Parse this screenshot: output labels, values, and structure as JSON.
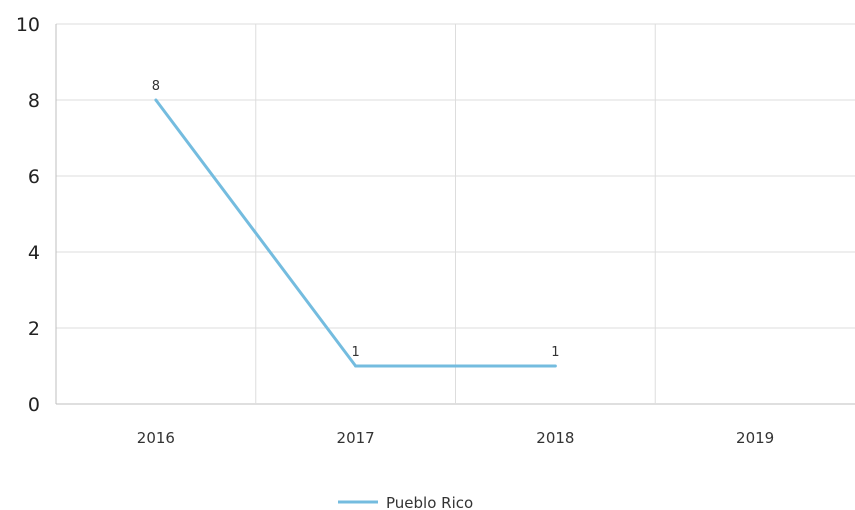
{
  "chart_data": {
    "type": "line",
    "title": "",
    "xlabel": "",
    "ylabel": "",
    "categories": [
      "2016",
      "2017",
      "2018",
      "2019"
    ],
    "series": [
      {
        "name": "Pueblo Rico",
        "values": [
          8,
          1,
          1,
          null
        ],
        "color": "#74BCDF"
      }
    ],
    "ylim": [
      0,
      10
    ],
    "yticks": [
      0,
      2,
      4,
      6,
      8,
      10
    ],
    "grid": true,
    "legend_position": "bottom-center",
    "data_labels": true
  }
}
